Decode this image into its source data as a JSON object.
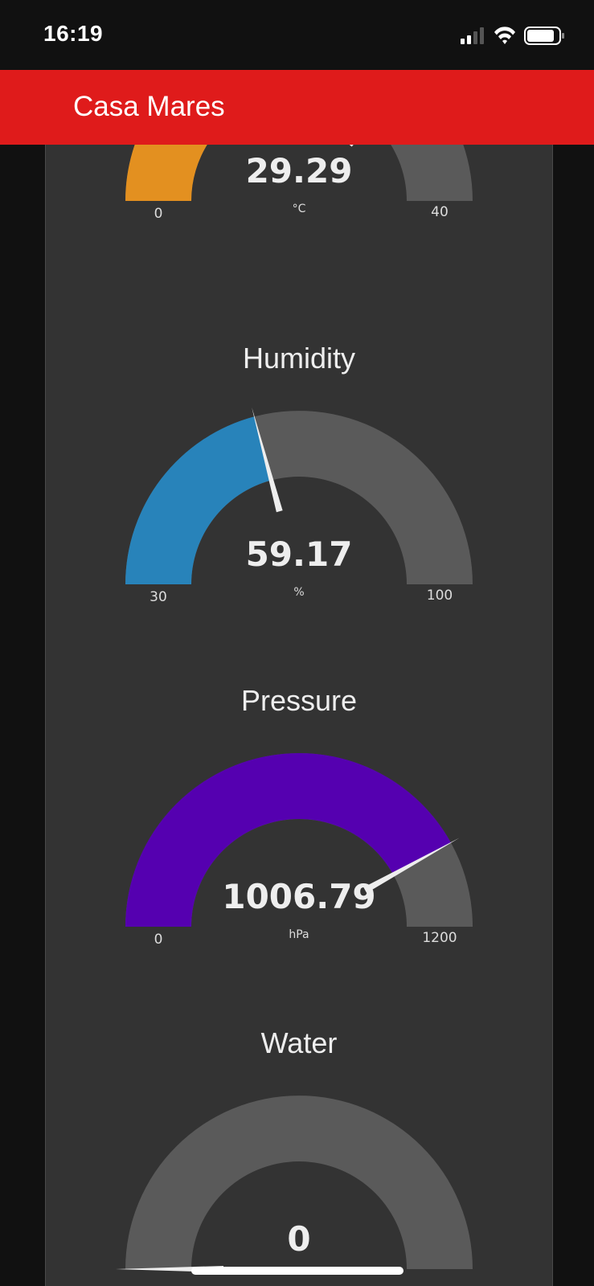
{
  "status_bar": {
    "time": "16:19",
    "icons": [
      "cellular-signal-icon",
      "wifi-icon",
      "battery-icon"
    ]
  },
  "header": {
    "title": "Casa Mares",
    "background": "#df1b1b"
  },
  "gauges": [
    {
      "id": "temperature",
      "title": "",
      "value": "29.29",
      "unit": "°C",
      "min": "0",
      "max": "40",
      "level": 0.732,
      "color": "#e39020"
    },
    {
      "id": "humidity",
      "title": "Humidity",
      "value": "59.17",
      "unit": "%",
      "min": "30",
      "max": "100",
      "level": 0.417,
      "color": "#2883ba"
    },
    {
      "id": "pressure",
      "title": "Pressure",
      "value": "1006.79",
      "unit": "hPa",
      "min": "0",
      "max": "1200",
      "level": 0.839,
      "color": "#5500b0"
    },
    {
      "id": "water",
      "title": "Water",
      "value": "0",
      "unit": "",
      "min": "",
      "max": "",
      "level": 0,
      "color": "#5a5a5a"
    }
  ],
  "colors": {
    "track": "#5a5a5a",
    "panel": "#333333",
    "needle": "#eeeeee"
  }
}
